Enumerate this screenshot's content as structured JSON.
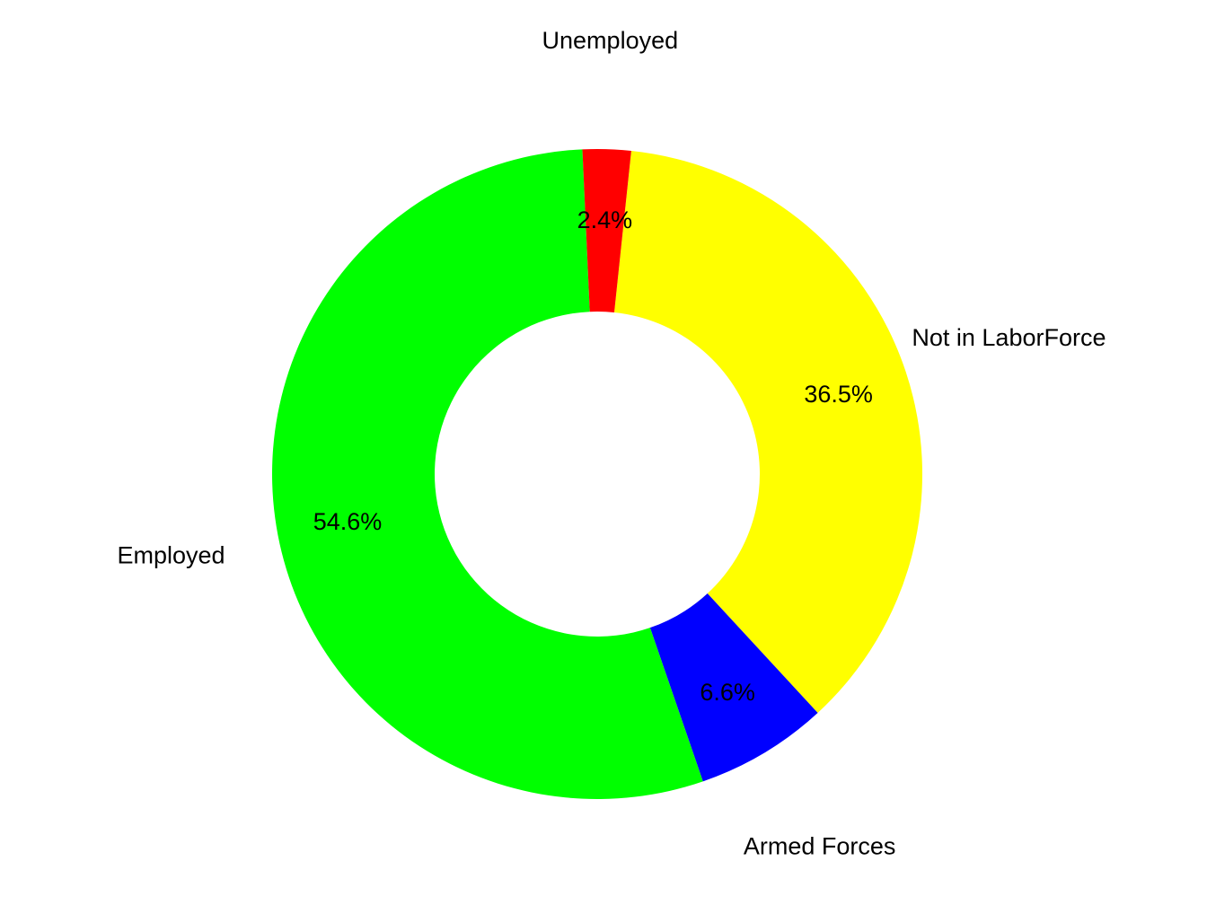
{
  "chart_data": {
    "type": "pie",
    "variant": "donut",
    "title": "",
    "slices": [
      {
        "label": "Not in LaborForce",
        "value": 36.5,
        "value_label": "36.5%",
        "color": "#FFFF00"
      },
      {
        "label": "Armed Forces",
        "value": 6.6,
        "value_label": "6.6%",
        "color": "#0000FF"
      },
      {
        "label": "Employed",
        "value": 54.6,
        "value_label": "54.6%",
        "color": "#00FF00"
      },
      {
        "label": "Unemployed",
        "value": 2.4,
        "value_label": "2.4%",
        "color": "#FF0000"
      }
    ],
    "start_position": "top-center",
    "direction": "clockwise",
    "legend": "none"
  }
}
